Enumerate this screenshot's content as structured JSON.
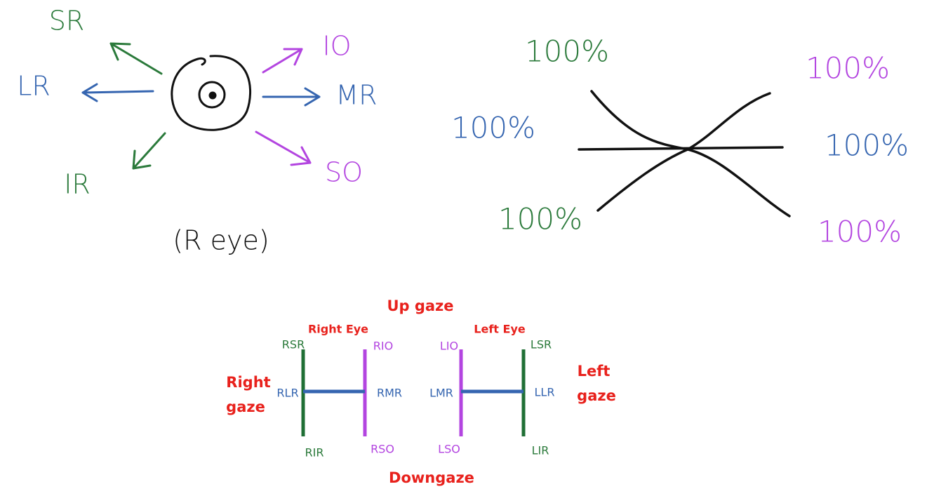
{
  "eye_sketch": {
    "labels": {
      "sr": "SR",
      "lr": "LR",
      "ir": "IR",
      "io": "IO",
      "mr": "MR",
      "so": "SO"
    },
    "caption": "(R eye)"
  },
  "yoke_sketch": {
    "labels": [
      "100%",
      "100%",
      "100%",
      "100%",
      "100%",
      "100%"
    ]
  },
  "gaze_diagram": {
    "up": "Up gaze",
    "down": "Downgaze",
    "right_eye": "Right Eye",
    "left_eye": "Left Eye",
    "right_gaze": [
      "Right",
      "gaze"
    ],
    "left_gaze": [
      "Left",
      "gaze"
    ],
    "muscles": {
      "rsr": "RSR",
      "rio": "RIO",
      "lio": "LIO",
      "lsr": "LSR",
      "rlr": "RLR",
      "rmr": "RMR",
      "lmr": "LMR",
      "llr": "LLR",
      "rir": "RIR",
      "rso": "RSO",
      "lso": "LSO",
      "lir": "LIR"
    }
  }
}
